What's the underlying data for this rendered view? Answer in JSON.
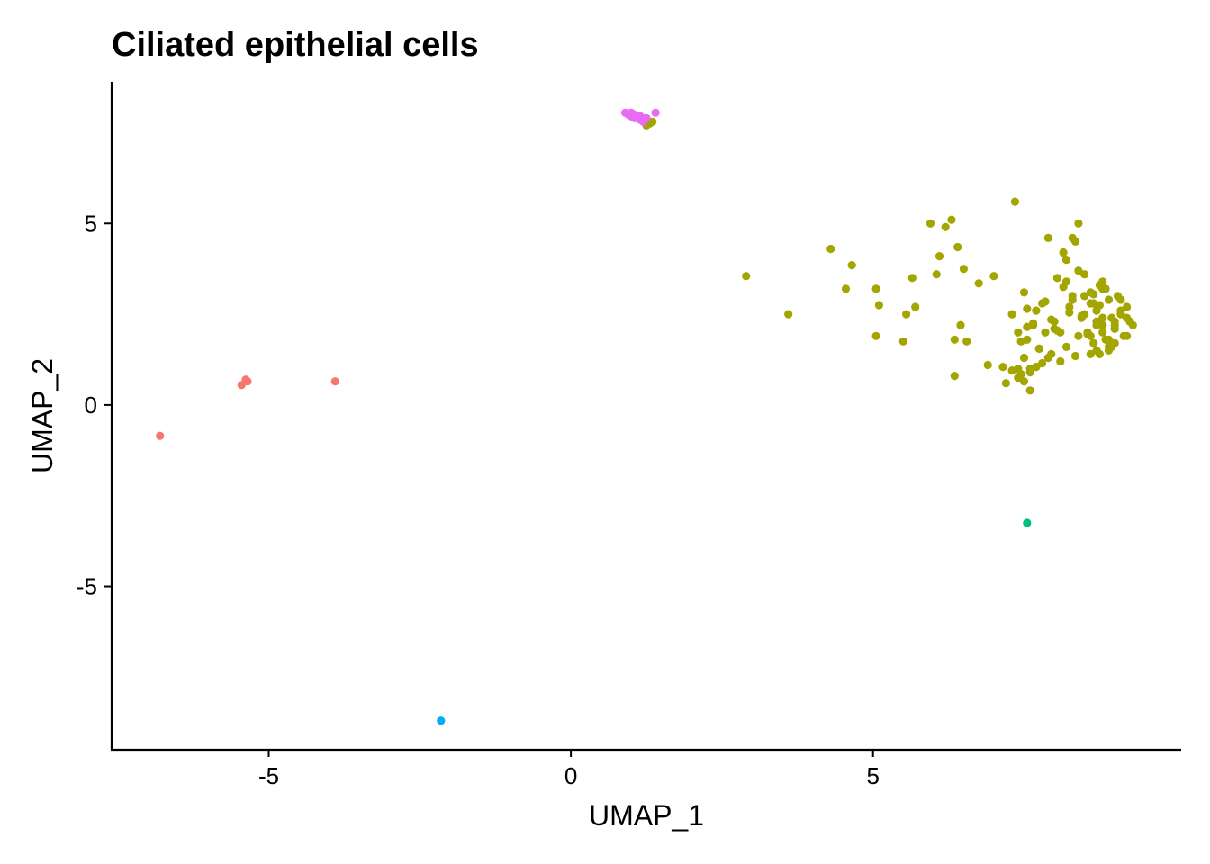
{
  "chart_data": {
    "type": "scatter",
    "title": "Ciliated epithelial cells",
    "xlabel": "UMAP_1",
    "ylabel": "UMAP_2",
    "xlim": [
      -7.6,
      10.1
    ],
    "ylim": [
      -9.5,
      8.9
    ],
    "xticks": [
      -5,
      0,
      5
    ],
    "yticks": [
      -5,
      0,
      5
    ],
    "xtick_labels": [
      "-5",
      "0",
      "5"
    ],
    "ytick_labels": [
      "-5",
      "0",
      "5"
    ],
    "grid": false,
    "legend": "none",
    "series": [
      {
        "color": "#F8766D",
        "x": [
          -6.8,
          -5.45,
          -5.35,
          -5.38,
          -3.9
        ],
        "y": [
          -0.85,
          0.55,
          0.65,
          0.7,
          0.65
        ]
      },
      {
        "color": "#A3A500",
        "x": [
          1.3,
          1.35,
          1.25,
          2.9,
          3.6,
          4.3,
          4.55,
          4.65,
          5.05,
          5.05,
          5.1,
          5.5,
          5.55,
          5.65,
          5.7,
          5.95,
          6.05,
          6.1,
          6.2,
          6.3,
          6.35,
          6.35,
          6.4,
          6.45,
          6.5,
          6.55,
          6.75,
          6.9,
          7.0,
          7.15,
          7.2,
          7.3,
          7.35,
          7.4,
          7.45,
          7.5,
          7.55,
          7.6,
          7.65,
          7.7,
          7.75,
          7.8,
          7.85,
          7.9,
          7.95,
          8.0,
          8.05,
          8.1,
          8.15,
          8.2,
          8.25,
          8.3,
          8.35,
          8.4,
          8.45,
          8.5,
          8.55,
          8.6,
          8.65,
          8.7,
          8.75,
          8.8,
          8.85,
          8.9,
          8.95,
          9.0,
          9.05,
          9.1,
          9.15,
          9.2,
          9.25,
          8.1,
          8.2,
          8.3,
          8.4,
          8.5,
          8.6,
          8.7,
          8.8,
          8.9,
          9.0,
          9.1,
          7.4,
          7.5,
          7.6,
          7.7,
          7.3,
          7.4,
          7.5,
          7.6,
          7.7,
          7.8,
          7.9,
          8.0,
          8.3,
          8.5,
          8.7,
          8.9,
          9.1,
          8.6,
          8.8,
          9.0,
          9.2,
          8.2,
          8.4,
          8.6,
          8.8,
          9.0,
          7.45,
          7.55,
          8.75,
          8.65,
          8.55,
          8.45,
          8.35,
          8.25,
          8.15,
          8.05,
          7.95,
          7.85,
          7.75,
          7.65,
          7.55,
          9.3,
          9.2,
          9.1,
          8.95,
          8.85,
          8.75,
          8.65,
          8.9,
          9.0,
          8.8,
          8.7
        ],
        "y": [
          7.75,
          7.8,
          7.7,
          3.55,
          2.5,
          4.3,
          3.2,
          3.85,
          1.9,
          3.2,
          2.75,
          1.75,
          2.5,
          3.5,
          2.7,
          5.0,
          3.6,
          4.1,
          4.9,
          5.1,
          0.8,
          1.8,
          4.35,
          2.2,
          3.75,
          1.75,
          3.35,
          1.1,
          3.55,
          1.05,
          0.6,
          2.5,
          5.6,
          1.0,
          0.85,
          3.1,
          1.8,
          0.4,
          2.2,
          1.05,
          1.55,
          2.8,
          2.0,
          4.6,
          1.4,
          2.3,
          3.5,
          2.0,
          4.2,
          1.6,
          2.7,
          3.0,
          4.5,
          1.9,
          2.4,
          3.6,
          2.0,
          3.1,
          1.7,
          2.6,
          3.3,
          2.2,
          1.8,
          2.9,
          2.4,
          2.1,
          3.0,
          2.5,
          1.9,
          2.7,
          2.3,
          1.2,
          3.4,
          2.9,
          5.0,
          2.5,
          1.9,
          2.3,
          3.2,
          1.6,
          2.1,
          2.6,
          2.0,
          1.3,
          1.0,
          2.6,
          0.95,
          0.75,
          0.65,
          0.9,
          1.05,
          1.15,
          1.3,
          2.1,
          4.6,
          3.0,
          2.2,
          1.5,
          2.9,
          1.4,
          2.0,
          1.7,
          1.9,
          4.0,
          3.7,
          2.8,
          2.4,
          2.2,
          1.75,
          2.15,
          2.75,
          3.05,
          1.95,
          2.45,
          1.35,
          2.55,
          3.25,
          2.05,
          2.35,
          2.85,
          1.55,
          2.25,
          2.65,
          2.2,
          2.4,
          2.6,
          1.6,
          3.2,
          1.4,
          2.8,
          1.8,
          2.3,
          3.4,
          1.5
        ]
      },
      {
        "color": "#00BF7D",
        "x": [
          7.55
        ],
        "y": [
          -3.25
        ]
      },
      {
        "color": "#00B0F6",
        "x": [
          -2.15
        ],
        "y": [
          -8.7
        ]
      },
      {
        "color": "#E76BF3",
        "x": [
          0.9,
          0.95,
          1.0,
          1.05,
          1.1,
          1.15,
          1.2,
          1.25,
          1.0,
          1.1,
          1.2,
          1.15,
          1.05,
          1.4
        ],
        "y": [
          8.05,
          8.0,
          7.95,
          8.0,
          7.9,
          7.85,
          7.8,
          7.9,
          8.05,
          7.95,
          7.85,
          7.95,
          7.9,
          8.05
        ]
      }
    ]
  }
}
